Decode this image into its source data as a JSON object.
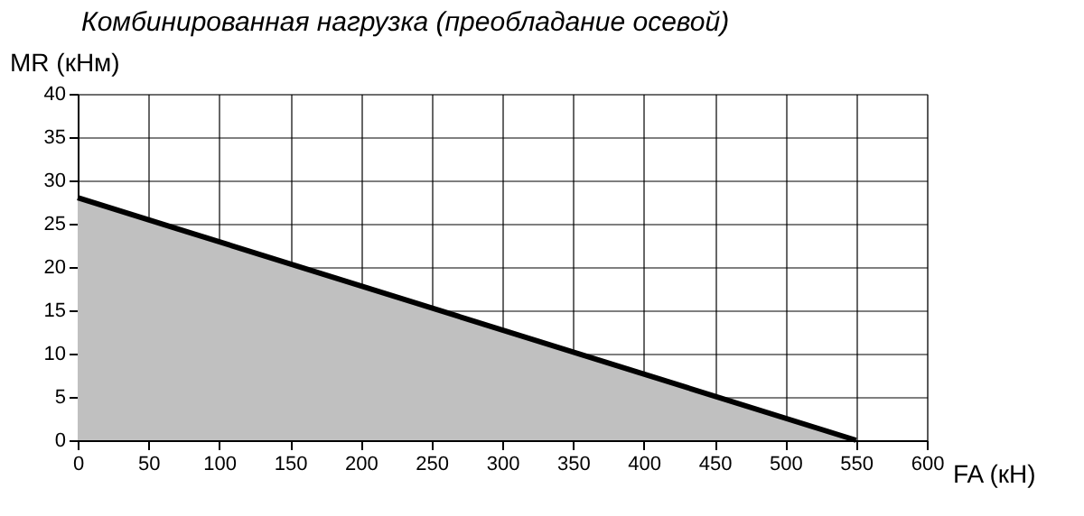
{
  "chart_data": {
    "type": "area",
    "title": "Комбинированная нагрузка (преобладание осевой)",
    "xlabel": "FA (кН)",
    "ylabel": "MR (кНм)",
    "x": [
      0,
      550
    ],
    "series": [
      {
        "color": "#c0c0c0",
        "values": [
          28,
          0
        ]
      }
    ],
    "xlim": [
      0,
      600
    ],
    "xticks": [
      0,
      50,
      100,
      150,
      200,
      250,
      300,
      350,
      400,
      450,
      500,
      550,
      600
    ],
    "ylim": [
      0,
      40
    ],
    "yticks": [
      0,
      5,
      10,
      15,
      20,
      25,
      30,
      35,
      40
    ],
    "grid": true
  }
}
